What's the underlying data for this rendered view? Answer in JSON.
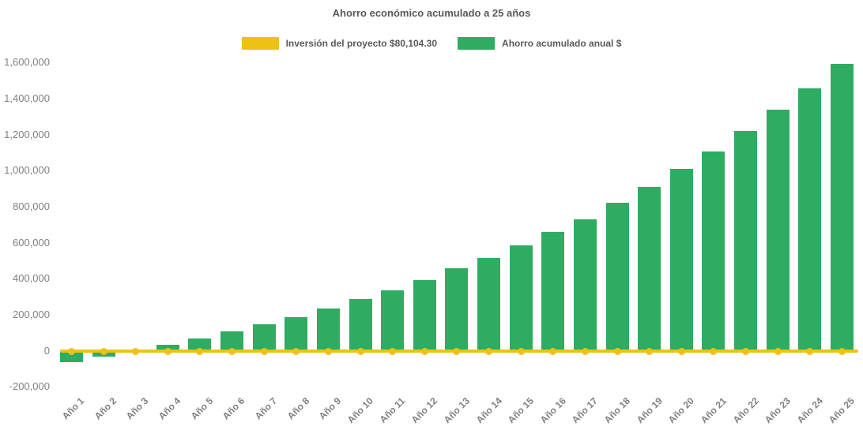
{
  "title": "Ahorro económico acumulado a 25 años",
  "legend": [
    {
      "label": "Inversión del proyecto $80,104.30",
      "color": "#EEC213",
      "swatch_icon": "legend-swatch"
    },
    {
      "label": "Ahorro acumulado anual $",
      "color": "#2DAC62",
      "swatch_icon": "legend-swatch"
    }
  ],
  "chart_data": {
    "type": "bar",
    "title": "Ahorro económico acumulado a 25 años",
    "categories": [
      "Año 1",
      "Año 2",
      "Año 3",
      "Año 4",
      "Año 5",
      "Año 6",
      "Año 7",
      "Año 8",
      "Año 9",
      "Año 10",
      "Año 11",
      "Año 12",
      "Año 13",
      "Año 14",
      "Año 15",
      "Año 16",
      "Año 17",
      "Año 18",
      "Año 19",
      "Año 20",
      "Año 21",
      "Año 22",
      "Año 23",
      "Año 24",
      "Año 25"
    ],
    "series": [
      {
        "name": "Inversión del proyecto $80,104.30",
        "type": "line",
        "color": "#EEC213",
        "marker": "circle",
        "values": [
          0,
          0,
          0,
          0,
          0,
          0,
          0,
          0,
          0,
          0,
          0,
          0,
          0,
          0,
          0,
          0,
          0,
          0,
          0,
          0,
          0,
          0,
          0,
          0,
          0
        ]
      },
      {
        "name": "Ahorro acumulado anual $",
        "type": "bar",
        "color": "#2DAC62",
        "values": [
          -65000,
          -35000,
          2000,
          32000,
          66000,
          106000,
          146000,
          186000,
          234000,
          286000,
          334000,
          393000,
          455000,
          512000,
          585000,
          660000,
          728000,
          820000,
          907000,
          1007000,
          1104000,
          1218000,
          1336000,
          1455000,
          1590000
        ]
      }
    ],
    "xlabel": "",
    "ylabel": "",
    "ylim": [
      -200000,
      1600000
    ],
    "ytick_step": 200000,
    "ytick_labels": [
      "-200,000",
      "0",
      "200,000",
      "400,000",
      "600,000",
      "800,000",
      "1,000,000",
      "1,200,000",
      "1,400,000",
      "1,600,000"
    ],
    "grid": false,
    "legend_position": "top"
  }
}
